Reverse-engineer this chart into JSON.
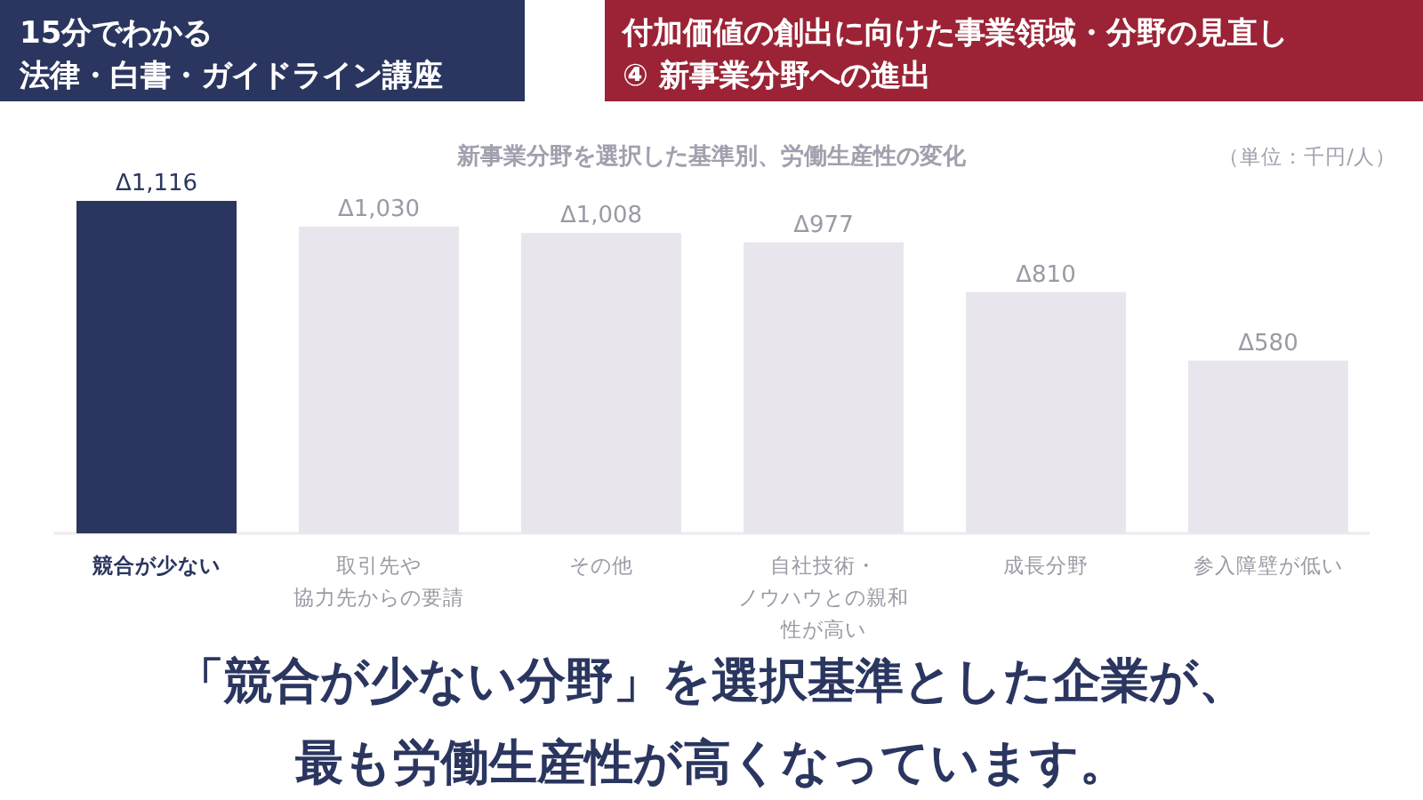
{
  "chart_data": {
    "type": "bar",
    "title": "新事業分野を選択した基準別、労働生産性の変化",
    "categories": [
      "競合が少ない",
      "取引先や協力先からの要請",
      "その他",
      "自社技術・ノウハウとの親和性が高い",
      "成長分野",
      "参入障壁が低い"
    ],
    "values": [
      1116,
      1030,
      1008,
      977,
      810,
      580
    ],
    "value_labels": [
      "Δ1,116",
      "Δ1,030",
      "Δ1,008",
      "Δ977",
      "Δ810",
      "Δ580"
    ],
    "colors": [
      "#2b3660",
      "#e8e6ec",
      "#e8e6ec",
      "#e8e6ec",
      "#e8e6ec",
      "#e8e6ec"
    ],
    "annotations": [
      "15分でわかる",
      "法律・白書・ガイドライン講座",
      "付加価値の創出に向けた事業領域・分野の見直し",
      "④ 新事業分野への進出",
      "（単位：千円/人）",
      "「競合が少ない分野」を選択基準とした企業が、",
      "最も労働生産性が高くなっています。"
    ]
  }
}
